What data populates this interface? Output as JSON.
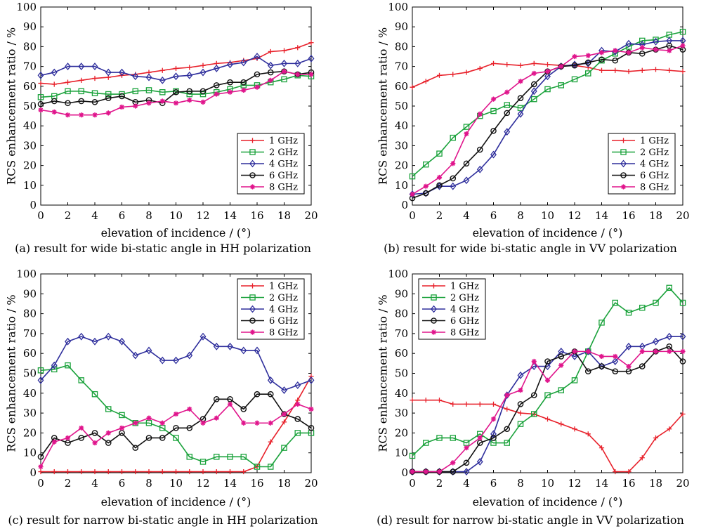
{
  "chart_data": [
    {
      "type": "line",
      "caption": "(a) result for wide bi-static angle in HH polarization",
      "xlabel": "elevation of incidence / (°)",
      "ylabel": "RCS enhancement ratio / %",
      "xlim": [
        0,
        20
      ],
      "ylim": [
        0,
        100
      ],
      "xticks": [
        0,
        2,
        4,
        6,
        8,
        10,
        12,
        14,
        16,
        18,
        20
      ],
      "yticks": [
        0,
        10,
        20,
        30,
        40,
        50,
        60,
        70,
        80,
        90,
        100
      ],
      "legend_position": "bottom-right",
      "x": [
        0,
        1,
        2,
        3,
        4,
        5,
        6,
        7,
        8,
        9,
        10,
        11,
        12,
        13,
        14,
        15,
        16,
        17,
        18,
        19,
        20
      ],
      "series": [
        {
          "name": "1 GHz",
          "color": "#e8202a",
          "marker": "plus",
          "values": [
            61.5,
            61,
            62,
            63,
            64,
            64.5,
            65.5,
            66,
            67,
            68,
            69,
            69.5,
            70.5,
            71.5,
            72,
            73,
            74,
            77.5,
            78,
            79.5,
            82
          ]
        },
        {
          "name": "2 GHz",
          "color": "#1aa23b",
          "marker": "square",
          "values": [
            54.5,
            55,
            57.5,
            57.5,
            56.5,
            56,
            56,
            57.5,
            58,
            57,
            57.5,
            56,
            56,
            57,
            58.5,
            60.5,
            60.5,
            62,
            63.5,
            65.5,
            65
          ]
        },
        {
          "name": "4 GHz",
          "color": "#2e2e9c",
          "marker": "diamond",
          "values": [
            65.5,
            67,
            70,
            70,
            70,
            67,
            67,
            65,
            64.5,
            63,
            65,
            65.5,
            67,
            69,
            71,
            72,
            75,
            70.5,
            71.5,
            71.5,
            74
          ]
        },
        {
          "name": "6 GHz",
          "color": "#111111",
          "marker": "circle",
          "values": [
            51,
            52.5,
            51.5,
            52.5,
            52,
            54,
            55,
            52,
            53,
            51.5,
            57,
            57.5,
            57.5,
            60.5,
            62,
            62,
            66,
            67,
            67.5,
            66,
            67
          ]
        },
        {
          "name": "8 GHz",
          "color": "#e0158c",
          "marker": "star",
          "values": [
            48,
            47,
            45.5,
            45.5,
            45.5,
            46.5,
            49.5,
            50,
            51.5,
            52.5,
            51.5,
            53,
            52,
            56,
            57,
            58,
            59.5,
            63,
            67.5,
            66,
            66
          ]
        }
      ]
    },
    {
      "type": "line",
      "caption": "(b) result for wide bi-static angle in VV polarization",
      "xlabel": "elevation of incidence / (°)",
      "ylabel": "RCS enhancement ratio / %",
      "xlim": [
        0,
        20
      ],
      "ylim": [
        0,
        100
      ],
      "xticks": [
        0,
        2,
        4,
        6,
        8,
        10,
        12,
        14,
        16,
        18,
        20
      ],
      "yticks": [
        0,
        10,
        20,
        30,
        40,
        50,
        60,
        70,
        80,
        90,
        100
      ],
      "legend_position": "bottom-right",
      "x": [
        0,
        1,
        2,
        3,
        4,
        5,
        6,
        7,
        8,
        9,
        10,
        11,
        12,
        13,
        14,
        15,
        16,
        17,
        18,
        19,
        20
      ],
      "series": [
        {
          "name": "1 GHz",
          "color": "#e8202a",
          "marker": "plus",
          "values": [
            59.5,
            62.5,
            65.5,
            66,
            67,
            69,
            71.5,
            71,
            70.5,
            71.5,
            71,
            70.5,
            70.5,
            69.5,
            68,
            68,
            67.5,
            68,
            68.5,
            68,
            67.5
          ]
        },
        {
          "name": "2 GHz",
          "color": "#1aa23b",
          "marker": "square",
          "values": [
            14.5,
            20.5,
            26,
            34,
            39.5,
            45,
            47.5,
            50.5,
            49,
            53.5,
            58.5,
            60.5,
            63.5,
            66.5,
            73,
            76.5,
            80,
            83,
            83.5,
            86,
            87.5
          ]
        },
        {
          "name": "4 GHz",
          "color": "#2e2e9c",
          "marker": "diamond",
          "values": [
            5.5,
            6,
            9.5,
            9.5,
            12.5,
            18,
            25.5,
            37,
            46,
            57.5,
            65,
            70,
            71,
            71.5,
            78,
            77.5,
            81.5,
            81,
            82.5,
            83,
            83
          ]
        },
        {
          "name": "6 GHz",
          "color": "#111111",
          "marker": "circle",
          "values": [
            3.5,
            6,
            10,
            13.5,
            21,
            28,
            37.5,
            46.5,
            54,
            61,
            67.5,
            70,
            70.5,
            72,
            73.5,
            73,
            77,
            76.5,
            78.5,
            80.5,
            78.5
          ]
        },
        {
          "name": "8 GHz",
          "color": "#e0158c",
          "marker": "star",
          "values": [
            5.5,
            9.5,
            14,
            21,
            36,
            46,
            53.5,
            57,
            62.5,
            66.5,
            67.5,
            70,
            75,
            75.5,
            77,
            78,
            77,
            79.5,
            78.5,
            78,
            80.5
          ]
        }
      ]
    },
    {
      "type": "line",
      "caption": "(c) result for narrow bi-static angle in HH polarization",
      "xlabel": "elevation of incidence / (°)",
      "ylabel": "RCS enhancement ratio / %",
      "xlim": [
        0,
        20
      ],
      "ylim": [
        0,
        100
      ],
      "xticks": [
        0,
        2,
        4,
        6,
        8,
        10,
        12,
        14,
        16,
        18,
        20
      ],
      "yticks": [
        0,
        10,
        20,
        30,
        40,
        50,
        60,
        70,
        80,
        90,
        100
      ],
      "legend_position": "top-right",
      "x": [
        0,
        1,
        2,
        3,
        4,
        5,
        6,
        7,
        8,
        9,
        10,
        11,
        12,
        13,
        14,
        15,
        16,
        17,
        18,
        19,
        20
      ],
      "series": [
        {
          "name": "1 GHz",
          "color": "#e8202a",
          "marker": "plus",
          "values": [
            0.5,
            0.5,
            0.5,
            0.5,
            0.5,
            0.5,
            0.5,
            0.5,
            0.5,
            0.5,
            0.5,
            0.5,
            0.5,
            0.5,
            0.5,
            0.5,
            3,
            15.5,
            25.5,
            36.5,
            48.5
          ]
        },
        {
          "name": "2 GHz",
          "color": "#1aa23b",
          "marker": "square",
          "values": [
            51.5,
            52,
            54,
            46.5,
            39.5,
            32,
            29,
            25,
            25,
            22.5,
            17.5,
            8,
            5.5,
            8,
            8,
            8,
            3,
            3,
            12.5,
            20,
            20
          ]
        },
        {
          "name": "4 GHz",
          "color": "#2e2e9c",
          "marker": "diamond",
          "values": [
            46.5,
            54,
            66,
            68.5,
            66,
            68.5,
            66,
            59,
            61.5,
            56.5,
            56.5,
            59,
            68.5,
            63.5,
            63.5,
            61.5,
            61.5,
            46.5,
            41.5,
            44,
            46.5
          ]
        },
        {
          "name": "6 GHz",
          "color": "#111111",
          "marker": "circle",
          "values": [
            8,
            17.5,
            15,
            17.5,
            20,
            15,
            20,
            12.5,
            17.5,
            17.5,
            22.5,
            22.5,
            27,
            37,
            37,
            32,
            39.5,
            39.5,
            29.5,
            27,
            22.5
          ]
        },
        {
          "name": "8 GHz",
          "color": "#e0158c",
          "marker": "star",
          "values": [
            3,
            15.5,
            17.5,
            22.5,
            15,
            20,
            22.5,
            25,
            27.5,
            25,
            29.5,
            32,
            25,
            27.5,
            34.5,
            25,
            25,
            25,
            29.5,
            34.5,
            32
          ]
        }
      ]
    },
    {
      "type": "line",
      "caption": "(d) result for narrow bi-static angle in VV polarization",
      "xlabel": "elevation of incidence / (°)",
      "ylabel": "RCS enhancement ratio / %",
      "xlim": [
        0,
        20
      ],
      "ylim": [
        0,
        100
      ],
      "xticks": [
        0,
        2,
        4,
        6,
        8,
        10,
        12,
        14,
        16,
        18,
        20
      ],
      "yticks": [
        0,
        10,
        20,
        30,
        40,
        50,
        60,
        70,
        80,
        90,
        100
      ],
      "legend_position": "top-left",
      "x": [
        0,
        1,
        2,
        3,
        4,
        5,
        6,
        7,
        8,
        9,
        10,
        11,
        12,
        13,
        14,
        15,
        16,
        17,
        18,
        19,
        20
      ],
      "series": [
        {
          "name": "1 GHz",
          "color": "#e8202a",
          "marker": "plus",
          "values": [
            36.5,
            36.5,
            36.5,
            34.5,
            34.5,
            34.5,
            34.5,
            32,
            30,
            29.5,
            27,
            24.5,
            22,
            19.5,
            12.5,
            0.5,
            0.5,
            7.5,
            17.5,
            22,
            29.5
          ]
        },
        {
          "name": "2 GHz",
          "color": "#1aa23b",
          "marker": "square",
          "values": [
            8.5,
            15,
            17.5,
            17.5,
            15,
            19.5,
            15,
            15,
            24.5,
            29.5,
            39,
            41.5,
            46.5,
            61,
            75.5,
            85.5,
            80.5,
            83,
            85.5,
            93,
            85.5
          ]
        },
        {
          "name": "4 GHz",
          "color": "#2e2e9c",
          "marker": "diamond",
          "values": [
            0.5,
            0.5,
            0.5,
            0.5,
            0.5,
            5.5,
            19.5,
            39,
            49,
            53.5,
            53.5,
            61,
            58.5,
            61,
            53.5,
            56,
            63.5,
            63.5,
            66,
            68.5,
            68.5
          ]
        },
        {
          "name": "6 GHz",
          "color": "#111111",
          "marker": "circle",
          "values": [
            0.5,
            0.5,
            0.5,
            0.5,
            5,
            15,
            17.5,
            22,
            34.5,
            39,
            56,
            58.5,
            61,
            51,
            53.5,
            51,
            51,
            53.5,
            61,
            63.5,
            56
          ]
        },
        {
          "name": "8 GHz",
          "color": "#e0158c",
          "marker": "star",
          "values": [
            0.5,
            0.5,
            0.5,
            5,
            12.5,
            17.5,
            27,
            39,
            41.5,
            56,
            46.5,
            54,
            61,
            61,
            58.5,
            58.5,
            53.5,
            61,
            61,
            61,
            61
          ]
        }
      ]
    }
  ]
}
